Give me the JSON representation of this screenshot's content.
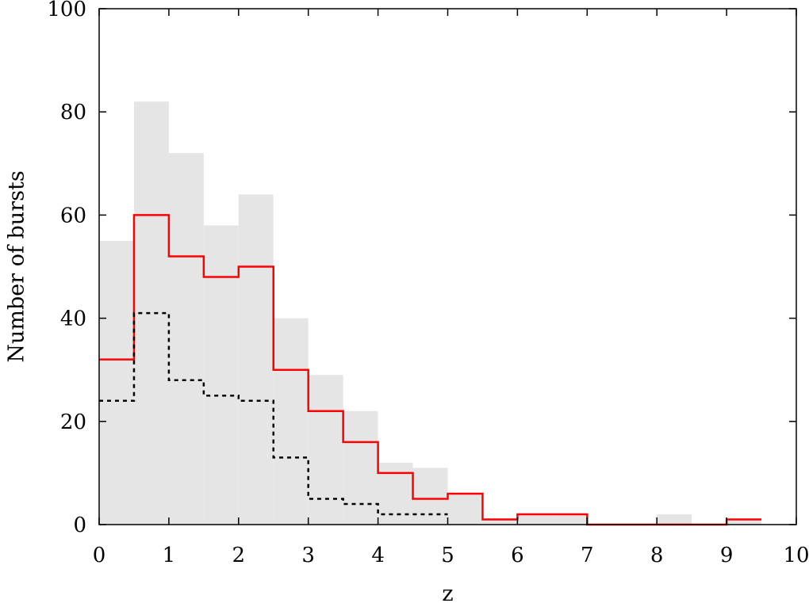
{
  "chart_data": {
    "type": "bar",
    "title": "",
    "xlabel": "z",
    "ylabel": "Number of bursts",
    "xlim": [
      0,
      10
    ],
    "ylim": [
      0,
      100
    ],
    "grid": false,
    "x_ticks": [
      0,
      1,
      2,
      3,
      4,
      5,
      6,
      7,
      8,
      9,
      10
    ],
    "y_ticks": [
      0,
      20,
      40,
      60,
      80,
      100
    ],
    "bin_width": 0.5,
    "series": [
      {
        "style": "filled",
        "color": "#e5e5e5",
        "bins": [
          {
            "x": 0.0,
            "value": 55
          },
          {
            "x": 0.5,
            "value": 82
          },
          {
            "x": 1.0,
            "value": 72
          },
          {
            "x": 1.5,
            "value": 58
          },
          {
            "x": 2.0,
            "value": 64
          },
          {
            "x": 2.5,
            "value": 40
          },
          {
            "x": 3.0,
            "value": 29
          },
          {
            "x": 3.5,
            "value": 22
          },
          {
            "x": 4.0,
            "value": 12
          },
          {
            "x": 4.5,
            "value": 11
          },
          {
            "x": 5.0,
            "value": 6
          },
          {
            "x": 5.5,
            "value": 1
          },
          {
            "x": 6.0,
            "value": 2
          },
          {
            "x": 6.5,
            "value": 2
          },
          {
            "x": 7.0,
            "value": 0
          },
          {
            "x": 7.5,
            "value": 0
          },
          {
            "x": 8.0,
            "value": 2
          },
          {
            "x": 8.5,
            "value": 0
          },
          {
            "x": 9.0,
            "value": 1
          }
        ]
      },
      {
        "style": "solid-step",
        "color": "#ff0000",
        "bins": [
          {
            "x": 0.0,
            "value": 32
          },
          {
            "x": 0.5,
            "value": 60
          },
          {
            "x": 1.0,
            "value": 52
          },
          {
            "x": 1.5,
            "value": 48
          },
          {
            "x": 2.0,
            "value": 50
          },
          {
            "x": 2.5,
            "value": 30
          },
          {
            "x": 3.0,
            "value": 22
          },
          {
            "x": 3.5,
            "value": 16
          },
          {
            "x": 4.0,
            "value": 10
          },
          {
            "x": 4.5,
            "value": 5
          },
          {
            "x": 5.0,
            "value": 6
          },
          {
            "x": 5.5,
            "value": 1
          },
          {
            "x": 6.0,
            "value": 2
          },
          {
            "x": 6.5,
            "value": 2
          },
          {
            "x": 7.0,
            "value": 0
          },
          {
            "x": 7.5,
            "value": 0
          },
          {
            "x": 8.0,
            "value": 0
          },
          {
            "x": 8.5,
            "value": 0
          },
          {
            "x": 9.0,
            "value": 1
          }
        ]
      },
      {
        "style": "dashed-step",
        "color": "#000000",
        "bins": [
          {
            "x": 0.0,
            "value": 24
          },
          {
            "x": 0.5,
            "value": 41
          },
          {
            "x": 1.0,
            "value": 28
          },
          {
            "x": 1.5,
            "value": 25
          },
          {
            "x": 2.0,
            "value": 24
          },
          {
            "x": 2.5,
            "value": 13
          },
          {
            "x": 3.0,
            "value": 5
          },
          {
            "x": 3.5,
            "value": 4
          },
          {
            "x": 4.0,
            "value": 2
          },
          {
            "x": 4.5,
            "value": 2
          }
        ]
      }
    ]
  }
}
